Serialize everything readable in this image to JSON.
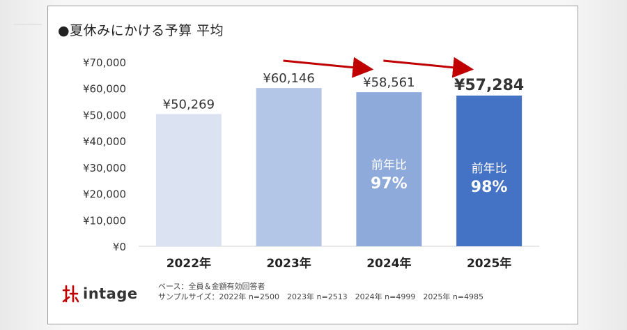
{
  "chart_data": {
    "type": "bar",
    "title": "●夏休みにかける予算 平均",
    "categories": [
      "2022年",
      "2023年",
      "2024年",
      "2025年"
    ],
    "values": [
      50269,
      60146,
      58561,
      57284
    ],
    "value_labels": [
      "¥50,269",
      "¥60,146",
      "¥58,561",
      "¥57,284"
    ],
    "ylim": [
      0,
      70000
    ],
    "yticks": [
      0,
      10000,
      20000,
      30000,
      40000,
      50000,
      60000,
      70000
    ],
    "ytick_labels": [
      "¥0",
      "¥10,000",
      "¥20,000",
      "¥30,000",
      "¥40,000",
      "¥50,000",
      "¥60,000",
      "¥70,000"
    ],
    "bar_colors": [
      "#dbe3f2",
      "#b4c6e7",
      "#8eaadb",
      "#4472c4"
    ],
    "grid": false,
    "annotations": [
      {
        "bar": 2,
        "line1": "前年比",
        "line2": "97%"
      },
      {
        "bar": 3,
        "line1": "前年比",
        "line2": "98%"
      }
    ],
    "arrow_color": "#c00000"
  },
  "footer": {
    "logo_text": "intage",
    "logo_color": "#c00000",
    "note_base": "ベース：全員＆金額有効回答者",
    "note_sample": "サンプルサイズ：2022年 n=2500　2023年 n=2513　2024年 n=4999　2025年 n=4985"
  }
}
